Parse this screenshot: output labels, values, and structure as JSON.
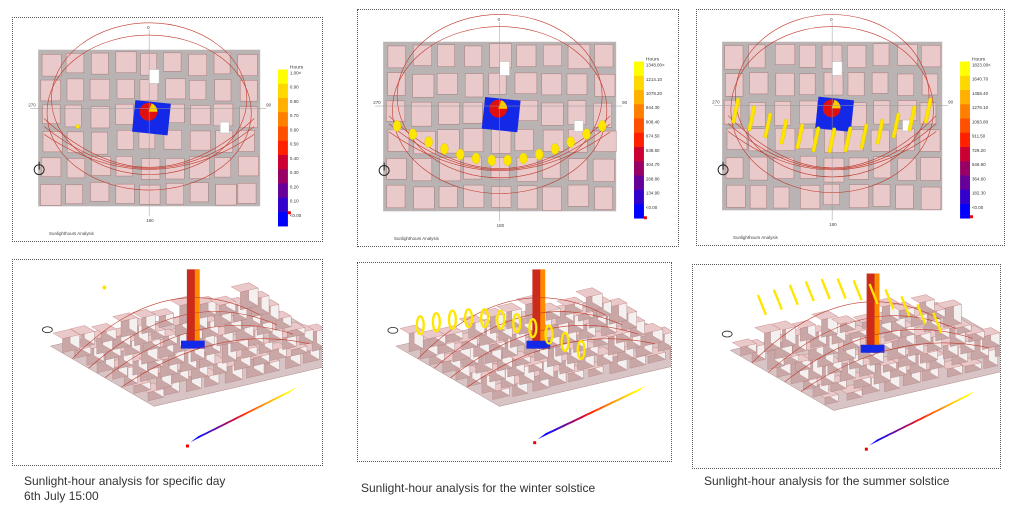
{
  "top_panels": [
    {
      "legend_title": "Hours",
      "legend_values": [
        "1.00<",
        "0.90",
        "0.80",
        "0.70",
        "0.60",
        "0.50",
        "0.40",
        "0.30",
        "0.20",
        "0.10",
        "<0.00"
      ],
      "panel_label": "Sunlighthours Analysis"
    },
    {
      "legend_title": "Hours",
      "legend_values": [
        "1348.00<",
        "1214.10",
        "1078.20",
        "944.30",
        "808.40",
        "674.50",
        "538.60",
        "404.70",
        "268.80",
        "134.90",
        "<0.00"
      ],
      "panel_label": "Sunlighthours Analysis"
    },
    {
      "legend_title": "Hours",
      "legend_values": [
        "1823.00<",
        "1640.70",
        "1458.40",
        "1276.10",
        "1093.80",
        "911.50",
        "729.20",
        "546.90",
        "364.60",
        "182.30",
        "<0.00"
      ],
      "panel_label": "Sunlighthours Analysis"
    }
  ],
  "compass": {
    "north": "0",
    "south": "180",
    "east": "90",
    "west": "270"
  },
  "captions": {
    "specific_day_line1": "Sunlight-hour analysis for specific day",
    "specific_day_line2": "6th July 15:00",
    "winter": "Sunlight-hour analysis for the winter solstice",
    "summer": "Sunlight-hour analysis for the summer solstice"
  },
  "colors": {
    "building": "#e9c9c9",
    "building_edge": "#a67a7a",
    "street": "#b9b3b3",
    "sunpath": "#c0392b",
    "sun_marker": "#ffe600",
    "site": "#1428e8",
    "legend_stops": [
      "#0000ff",
      "#3300cc",
      "#660099",
      "#990066",
      "#cc0033",
      "#ff2000",
      "#ff5000",
      "#ff8000",
      "#ffb000",
      "#ffd800",
      "#ffff00"
    ]
  }
}
